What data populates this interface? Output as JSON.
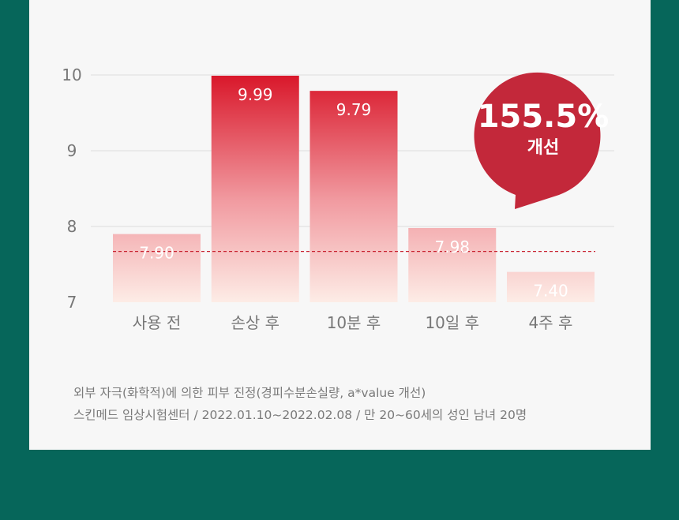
{
  "chart_data": {
    "type": "bar",
    "categories": [
      "사용 전",
      "손상 후",
      "10분 후",
      "10일 후",
      "4주 후"
    ],
    "values": [
      7.9,
      9.99,
      9.79,
      7.98,
      7.4
    ],
    "value_labels": [
      "7.90",
      "9.99",
      "9.79",
      "7.98",
      "7.40"
    ],
    "y_ticks": [
      "10",
      "9",
      "8",
      "7"
    ],
    "ylim": [
      7,
      10
    ],
    "reference_line": 7.4,
    "grid": true,
    "colors": {
      "bar_top": "#d9172a",
      "bar_bottom": "#fde9e4",
      "reference": "#c8202e",
      "badge": "#c3283a"
    }
  },
  "badge": {
    "value": "155.5%",
    "label": "개선"
  },
  "footnote": {
    "line1": "외부 자극(화학적)에 의한 피부 진정(경피수분손실량, a*value 개선)",
    "line2": "스킨메드 임상시험센터 / 2022.01.10~2022.02.08 / 만 20~60세의 성인 남녀 20명"
  }
}
